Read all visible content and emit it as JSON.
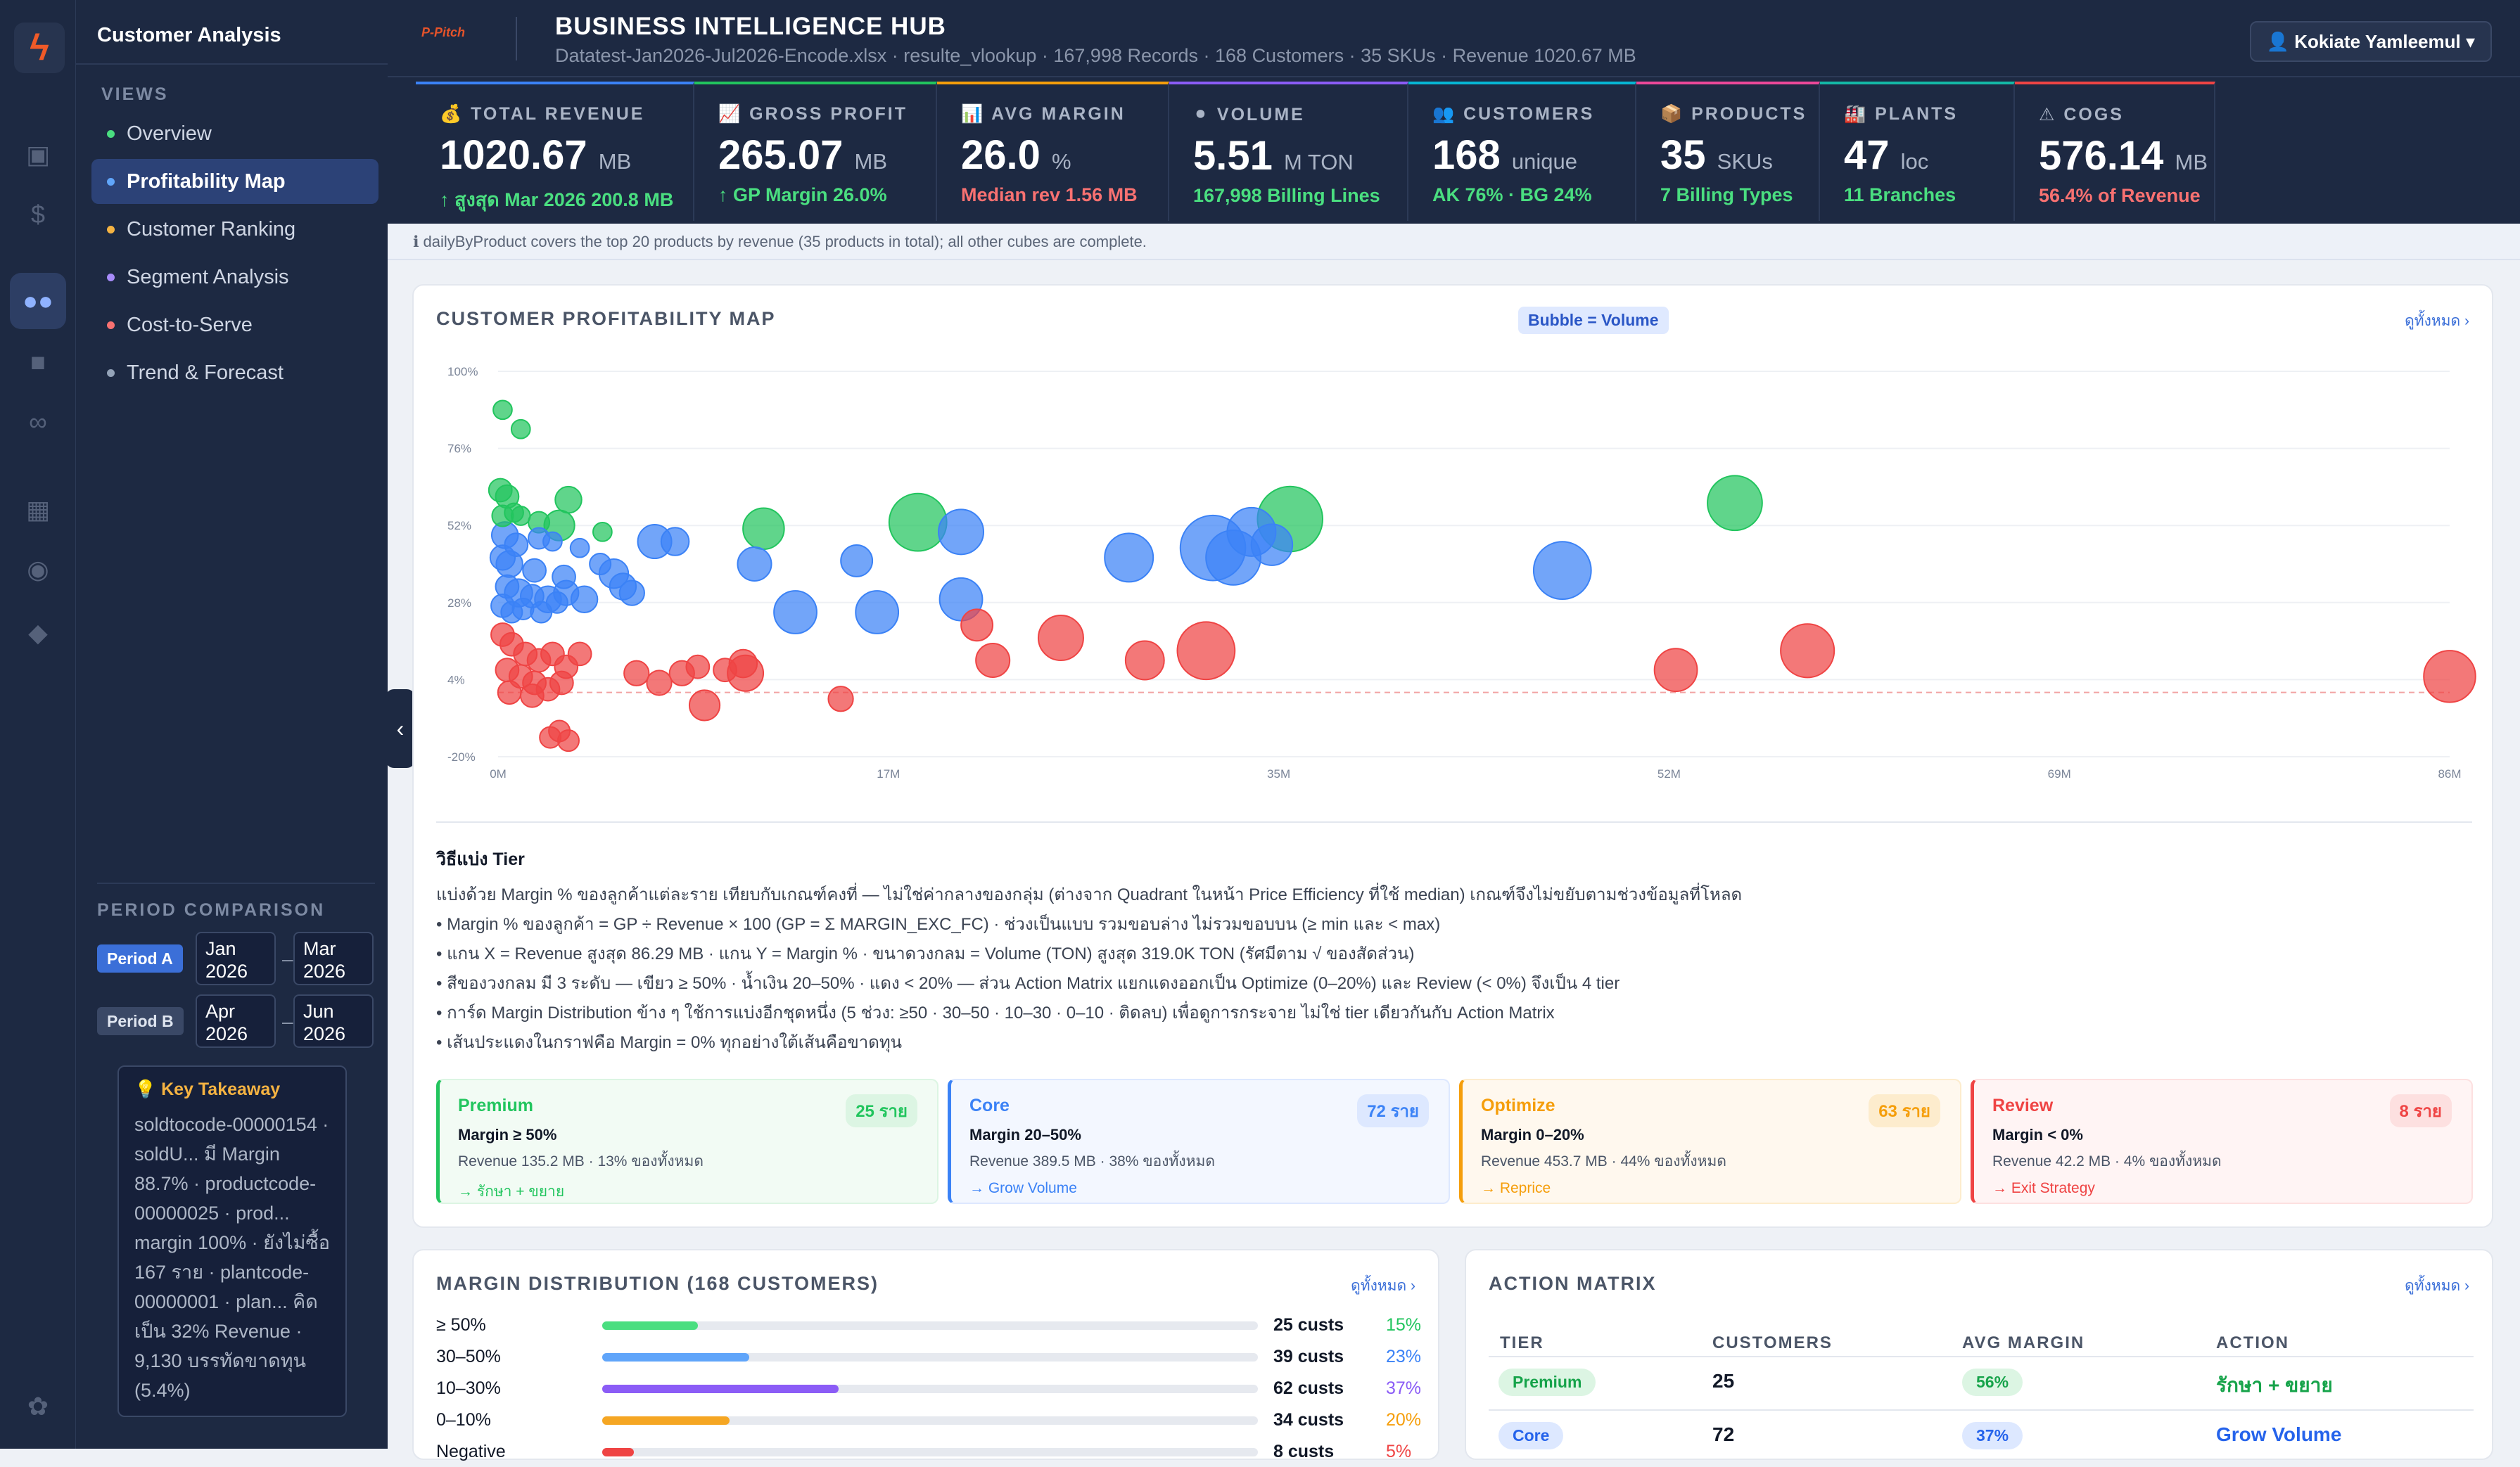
{
  "app": {
    "sidebar_title": "Customer Analysis",
    "views_label": "VIEWS",
    "logo_glyph": "ϟ"
  },
  "nav": [
    {
      "label": "Overview",
      "color": "#4ade80"
    },
    {
      "label": "Profitability Map",
      "color": "#60a5fa"
    },
    {
      "label": "Customer Ranking",
      "color": "#f5b342"
    },
    {
      "label": "Segment Analysis",
      "color": "#a78bfa"
    },
    {
      "label": "Cost-to-Serve",
      "color": "#f87171"
    },
    {
      "label": "Trend & Forecast",
      "color": "#94a3b8"
    }
  ],
  "rail_icons": [
    "calendar-icon",
    "dollar-icon",
    "users-icon",
    "box-icon",
    "link-icon",
    "factory-icon",
    "money-bag-icon",
    "droplet-icon",
    "leaf-icon"
  ],
  "period": {
    "label": "PERIOD COMPARISON",
    "a": {
      "tag": "Period A",
      "from_m": "Jan",
      "from_y": "2026",
      "to_m": "Mar",
      "to_y": "2026"
    },
    "b": {
      "tag": "Period B",
      "from_m": "Apr",
      "from_y": "2026",
      "to_m": "Jun",
      "to_y": "2026"
    },
    "dash": "–"
  },
  "takeaway": {
    "title": "💡 Key Takeaway",
    "body": "soldtocode-00000154 · soldU... มี Margin 88.7% · productcode-00000025 · prod... margin 100% · ยังไม่ซื้อ 167 ราย · plantcode-00000001 · plan... คิดเป็น 32% Revenue · 9,130 บรรทัดขาดทุน (5.4%)"
  },
  "header": {
    "title": "BUSINESS INTELLIGENCE HUB",
    "subtitle": "Datatest-Jan2026-Jul2026-Encode.xlsx · resulte_vlookup · 167,998 Records · 168 Customers · 35 SKUs · Revenue 1020.67 MB",
    "user": "👤  Kokiate Yamleemul  ▾",
    "logo_text": "P‑Pitch"
  },
  "kpis": [
    {
      "label": "💰 TOTAL REVENUE",
      "value": "1020.67",
      "unit": "MB",
      "sub": "↑ สูงสุด Mar 2026 200.8 MB",
      "color": "#3b82f6",
      "subcolor": "#4ade80"
    },
    {
      "label": "📈 GROSS PROFIT",
      "value": "265.07",
      "unit": "MB",
      "sub": "↑ GP Margin 26.0%",
      "color": "#22c55e",
      "subcolor": "#4ade80"
    },
    {
      "label": "📊 AVG MARGIN",
      "value": "26.0",
      "unit": "%",
      "sub": "Median rev 1.56 MB",
      "color": "#f59e0b",
      "subcolor": "#f87171"
    },
    {
      "label": "⚫ VOLUME",
      "value": "5.51",
      "unit": "M TON",
      "sub": "167,998 Billing Lines",
      "color": "#8b5cf6",
      "subcolor": "#4ade80"
    },
    {
      "label": "👥 CUSTOMERS",
      "value": "168",
      "unit": "unique",
      "sub": "AK 76% · BG 24%",
      "color": "#06b6d4",
      "subcolor": "#4ade80"
    },
    {
      "label": "📦 PRODUCTS",
      "value": "35",
      "unit": "SKUs",
      "sub": "7 Billing Types",
      "color": "#ec4899",
      "subcolor": "#4ade80"
    },
    {
      "label": "🏭 PLANTS",
      "value": "47",
      "unit": "loc",
      "sub": "11 Branches",
      "color": "#14b8a6",
      "subcolor": "#4ade80"
    },
    {
      "label": "⚠ COGS",
      "value": "576.14",
      "unit": "MB",
      "sub": "56.4% of Revenue",
      "color": "#ef4444",
      "subcolor": "#f87171"
    }
  ],
  "notice": "ℹ dailyByProduct covers the top 20 products by revenue (35 products in total); all other cubes are complete.",
  "map": {
    "title": "CUSTOMER PROFITABILITY MAP",
    "pill": "Bubble = Volume",
    "more": "ดูทั้งหมด ›"
  },
  "chart_data": {
    "type": "scatter",
    "title": "CUSTOMER PROFITABILITY MAP",
    "xlabel": "",
    "ylabel": "",
    "x_ticks": [
      "0M",
      "17M",
      "35M",
      "52M",
      "69M",
      "86M"
    ],
    "y_ticks": [
      "100%",
      "76%",
      "52%",
      "28%",
      "4%",
      "-20%"
    ],
    "xlim": [
      0,
      86
    ],
    "ylim": [
      -20,
      100
    ],
    "reference_line_y": 0,
    "grid": true,
    "legend": "Bubble = Volume",
    "tier_colors": {
      "Premium": "#22c55e",
      "Core": "#3b82f6",
      "Optimize": "#f59e0b",
      "Review": "#ef4444"
    },
    "points": [
      {
        "x": 0.2,
        "y": 88,
        "v": 2,
        "tier": "Premium"
      },
      {
        "x": 1.0,
        "y": 82,
        "v": 2,
        "tier": "Premium"
      },
      {
        "x": 0.1,
        "y": 63,
        "v": 4,
        "tier": "Premium"
      },
      {
        "x": 0.4,
        "y": 61,
        "v": 4,
        "tier": "Premium"
      },
      {
        "x": 0.7,
        "y": 56,
        "v": 2,
        "tier": "Premium"
      },
      {
        "x": 0.2,
        "y": 55,
        "v": 3,
        "tier": "Premium"
      },
      {
        "x": 1.0,
        "y": 55,
        "v": 2,
        "tier": "Premium"
      },
      {
        "x": 3.1,
        "y": 60,
        "v": 6,
        "tier": "Premium"
      },
      {
        "x": 2.7,
        "y": 52,
        "v": 9,
        "tier": "Premium"
      },
      {
        "x": 1.8,
        "y": 53,
        "v": 3,
        "tier": "Premium"
      },
      {
        "x": 4.6,
        "y": 50,
        "v": 2,
        "tier": "Premium"
      },
      {
        "x": 11.7,
        "y": 51,
        "v": 20,
        "tier": "Premium"
      },
      {
        "x": 18.5,
        "y": 53,
        "v": 45,
        "tier": "Premium"
      },
      {
        "x": 34.9,
        "y": 54,
        "v": 60,
        "tier": "Premium"
      },
      {
        "x": 54.5,
        "y": 59,
        "v": 40,
        "tier": "Premium"
      },
      {
        "x": 0.3,
        "y": 49,
        "v": 6,
        "tier": "Core"
      },
      {
        "x": 0.8,
        "y": 46,
        "v": 4,
        "tier": "Core"
      },
      {
        "x": 0.2,
        "y": 42,
        "v": 5,
        "tier": "Core"
      },
      {
        "x": 0.5,
        "y": 40,
        "v": 6,
        "tier": "Core"
      },
      {
        "x": 1.8,
        "y": 48,
        "v": 3,
        "tier": "Core"
      },
      {
        "x": 2.4,
        "y": 47,
        "v": 2,
        "tier": "Core"
      },
      {
        "x": 3.6,
        "y": 45,
        "v": 2,
        "tier": "Core"
      },
      {
        "x": 1.6,
        "y": 38,
        "v": 4,
        "tier": "Core"
      },
      {
        "x": 2.9,
        "y": 36,
        "v": 4,
        "tier": "Core"
      },
      {
        "x": 4.5,
        "y": 40,
        "v": 3,
        "tier": "Core"
      },
      {
        "x": 5.1,
        "y": 37,
        "v": 8,
        "tier": "Core"
      },
      {
        "x": 0.4,
        "y": 33,
        "v": 4,
        "tier": "Core"
      },
      {
        "x": 0.9,
        "y": 31,
        "v": 7,
        "tier": "Core"
      },
      {
        "x": 1.5,
        "y": 30,
        "v": 4,
        "tier": "Core"
      },
      {
        "x": 2.2,
        "y": 29,
        "v": 6,
        "tier": "Core"
      },
      {
        "x": 3.0,
        "y": 31,
        "v": 5,
        "tier": "Core"
      },
      {
        "x": 3.8,
        "y": 29,
        "v": 6,
        "tier": "Core"
      },
      {
        "x": 5.5,
        "y": 33,
        "v": 6,
        "tier": "Core"
      },
      {
        "x": 5.9,
        "y": 31,
        "v": 5,
        "tier": "Core"
      },
      {
        "x": 0.2,
        "y": 27,
        "v": 4,
        "tier": "Core"
      },
      {
        "x": 0.6,
        "y": 25,
        "v": 3,
        "tier": "Core"
      },
      {
        "x": 1.1,
        "y": 26,
        "v": 3,
        "tier": "Core"
      },
      {
        "x": 1.9,
        "y": 25,
        "v": 3,
        "tier": "Core"
      },
      {
        "x": 2.6,
        "y": 28,
        "v": 3,
        "tier": "Core"
      },
      {
        "x": 6.9,
        "y": 47,
        "v": 12,
        "tier": "Core"
      },
      {
        "x": 7.8,
        "y": 47,
        "v": 7,
        "tier": "Core"
      },
      {
        "x": 11.3,
        "y": 40,
        "v": 12,
        "tier": "Core"
      },
      {
        "x": 15.8,
        "y": 41,
        "v": 10,
        "tier": "Core"
      },
      {
        "x": 20.4,
        "y": 50,
        "v": 25,
        "tier": "Core"
      },
      {
        "x": 13.1,
        "y": 25,
        "v": 22,
        "tier": "Core"
      },
      {
        "x": 16.7,
        "y": 25,
        "v": 22,
        "tier": "Core"
      },
      {
        "x": 20.4,
        "y": 29,
        "v": 22,
        "tier": "Core"
      },
      {
        "x": 27.8,
        "y": 42,
        "v": 30,
        "tier": "Core"
      },
      {
        "x": 31.5,
        "y": 45,
        "v": 60,
        "tier": "Core"
      },
      {
        "x": 32.4,
        "y": 42,
        "v": 40,
        "tier": "Core"
      },
      {
        "x": 33.2,
        "y": 50,
        "v": 30,
        "tier": "Core"
      },
      {
        "x": 34.1,
        "y": 46,
        "v": 20,
        "tier": "Core"
      },
      {
        "x": 46.9,
        "y": 38,
        "v": 45,
        "tier": "Core"
      },
      {
        "x": 0.2,
        "y": 18,
        "v": 4,
        "tier": "Review"
      },
      {
        "x": 0.6,
        "y": 15,
        "v": 4,
        "tier": "Review"
      },
      {
        "x": 1.2,
        "y": 12,
        "v": 4,
        "tier": "Review"
      },
      {
        "x": 1.8,
        "y": 10,
        "v": 4,
        "tier": "Review"
      },
      {
        "x": 2.4,
        "y": 12,
        "v": 4,
        "tier": "Review"
      },
      {
        "x": 3.0,
        "y": 8,
        "v": 4,
        "tier": "Review"
      },
      {
        "x": 3.6,
        "y": 12,
        "v": 4,
        "tier": "Review"
      },
      {
        "x": 0.4,
        "y": 7,
        "v": 4,
        "tier": "Review"
      },
      {
        "x": 1.0,
        "y": 5,
        "v": 4,
        "tier": "Review"
      },
      {
        "x": 1.6,
        "y": 3,
        "v": 4,
        "tier": "Review"
      },
      {
        "x": 2.2,
        "y": 1,
        "v": 4,
        "tier": "Review"
      },
      {
        "x": 2.8,
        "y": 3,
        "v": 4,
        "tier": "Review"
      },
      {
        "x": 0.5,
        "y": 0,
        "v": 4,
        "tier": "Review"
      },
      {
        "x": 1.5,
        "y": -1,
        "v": 4,
        "tier": "Review"
      },
      {
        "x": 2.7,
        "y": -12,
        "v": 3,
        "tier": "Review"
      },
      {
        "x": 2.3,
        "y": -14,
        "v": 3,
        "tier": "Review"
      },
      {
        "x": 3.1,
        "y": -15,
        "v": 3,
        "tier": "Review"
      },
      {
        "x": 6.1,
        "y": 6,
        "v": 5,
        "tier": "Review"
      },
      {
        "x": 7.1,
        "y": 3,
        "v": 5,
        "tier": "Review"
      },
      {
        "x": 8.1,
        "y": 6,
        "v": 5,
        "tier": "Review"
      },
      {
        "x": 8.8,
        "y": 8,
        "v": 4,
        "tier": "Review"
      },
      {
        "x": 9.1,
        "y": -4,
        "v": 9,
        "tier": "Review"
      },
      {
        "x": 10.0,
        "y": 7,
        "v": 4,
        "tier": "Review"
      },
      {
        "x": 10.8,
        "y": 9,
        "v": 7,
        "tier": "Review"
      },
      {
        "x": 10.9,
        "y": 6,
        "v": 14,
        "tier": "Review"
      },
      {
        "x": 15.1,
        "y": -2,
        "v": 5,
        "tier": "Review"
      },
      {
        "x": 21.1,
        "y": 21,
        "v": 10,
        "tier": "Review"
      },
      {
        "x": 21.8,
        "y": 10,
        "v": 12,
        "tier": "Review"
      },
      {
        "x": 24.8,
        "y": 17,
        "v": 25,
        "tier": "Review"
      },
      {
        "x": 28.5,
        "y": 10,
        "v": 17,
        "tier": "Review"
      },
      {
        "x": 31.2,
        "y": 13,
        "v": 45,
        "tier": "Review"
      },
      {
        "x": 51.9,
        "y": 7,
        "v": 22,
        "tier": "Review"
      },
      {
        "x": 57.7,
        "y": 13,
        "v": 38,
        "tier": "Review"
      },
      {
        "x": 86.0,
        "y": 5,
        "v": 35,
        "tier": "Review"
      }
    ]
  },
  "tier_method": {
    "title": "วิธีแบ่ง Tier",
    "lines": [
      "แบ่งด้วย Margin % ของลูกค้าแต่ละราย เทียบกับเกณฑ์คงที่ — ไม่ใช่ค่ากลางของกลุ่ม (ต่างจาก Quadrant ในหน้า Price Efficiency ที่ใช้ median) เกณฑ์จึงไม่ขยับตามช่วงข้อมูลที่โหลด",
      "• Margin % ของลูกค้า = GP ÷ Revenue × 100 (GP = Σ MARGIN_EXC_FC) · ช่วงเป็นแบบ รวมขอบล่าง ไม่รวมขอบบน (≥ min และ < max)",
      "• แกน X = Revenue สูงสุด 86.29 MB · แกน Y = Margin % · ขนาดวงกลม = Volume (TON) สูงสุด 319.0K TON (รัศมีตาม √ ของสัดส่วน)",
      "• สีของวงกลม มี 3 ระดับ — เขียว ≥ 50% · น้ำเงิน 20–50% · แดง < 20% — ส่วน Action Matrix แยกแดงออกเป็น Optimize (0–20%) และ Review (< 0%) จึงเป็น 4 tier",
      "• การ์ด Margin Distribution ข้าง ๆ ใช้การแบ่งอีกชุดหนึ่ง (5 ช่วง: ≥50 · 30–50 · 10–30 · 0–10 · ติดลบ) เพื่อดูการกระจาย ไม่ใช่ tier เดียวกันกับ Action Matrix",
      "• เส้นประแดงในกราฟคือ Margin = 0% ทุกอย่างใต้เส้นคือขาดทุน"
    ]
  },
  "tiers": [
    {
      "name": "Premium",
      "count": "25 ราย",
      "rule": "Margin ≥ 50%",
      "rev": "Revenue 135.2 MB · 13% ของทั้งหมด",
      "action": "→ รักษา + ขยาย",
      "color": "#22c55e",
      "bg": "#f2fbf4",
      "pill": "#dcf5e3"
    },
    {
      "name": "Core",
      "count": "72 ราย",
      "rule": "Margin 20–50%",
      "rev": "Revenue 389.5 MB · 38% ของทั้งหมด",
      "action": "→ Grow Volume",
      "color": "#3b82f6",
      "bg": "#f3f7ff",
      "pill": "#dde8ff"
    },
    {
      "name": "Optimize",
      "count": "63 ราย",
      "rule": "Margin 0–20%",
      "rev": "Revenue 453.7 MB · 44% ของทั้งหมด",
      "action": "→ Reprice",
      "color": "#f59e0b",
      "bg": "#fff8ee",
      "pill": "#fdeccd"
    },
    {
      "name": "Review",
      "count": "8 ราย",
      "rule": "Margin < 0%",
      "rev": "Revenue 42.2 MB · 4% ของทั้งหมด",
      "action": "→ Exit Strategy",
      "color": "#ef4444",
      "bg": "#fff4f4",
      "pill": "#fde0e0"
    }
  ],
  "dist": {
    "title": "MARGIN DISTRIBUTION (168 CUSTOMERS)",
    "more": "ดูทั้งหมด ›",
    "rows": [
      {
        "label": "≥ 50%",
        "count": "25 custs",
        "pct": "15%",
        "share": 0.15,
        "color": "#4ade80",
        "pctcolor": "#22c55e"
      },
      {
        "label": "30–50%",
        "count": "39 custs",
        "pct": "23%",
        "share": 0.23,
        "color": "#60a5fa",
        "pctcolor": "#3b82f6"
      },
      {
        "label": "10–30%",
        "count": "62 custs",
        "pct": "37%",
        "share": 0.37,
        "color": "#8b5cf6",
        "pctcolor": "#8b5cf6"
      },
      {
        "label": "0–10%",
        "count": "34 custs",
        "pct": "20%",
        "share": 0.2,
        "color": "#f5a623",
        "pctcolor": "#f59e0b"
      },
      {
        "label": "Negative",
        "count": "8 custs",
        "pct": "5%",
        "share": 0.05,
        "color": "#ef4444",
        "pctcolor": "#ef4444"
      }
    ]
  },
  "matrix": {
    "title": "ACTION MATRIX",
    "more": "ดูทั้งหมด ›",
    "headers": [
      "TIER",
      "CUSTOMERS",
      "AVG MARGIN",
      "ACTION"
    ],
    "rows": [
      {
        "tier": "Premium",
        "customers": "25",
        "margin": "56%",
        "action": "รักษา + ขยาย",
        "color": "#16a34a",
        "bg": "#dcf5e3"
      },
      {
        "tier": "Core",
        "customers": "72",
        "margin": "37%",
        "action": "Grow Volume",
        "color": "#2563eb",
        "bg": "#dde8ff"
      }
    ]
  }
}
